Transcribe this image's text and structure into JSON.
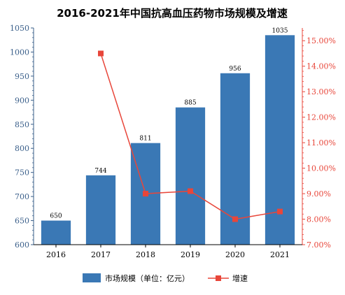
{
  "chart_data": {
    "type": "bar",
    "title": "2016-2021年中国抗高血压药物市场规模及增速",
    "categories": [
      "2016",
      "2017",
      "2018",
      "2019",
      "2020",
      "2021"
    ],
    "series": [
      {
        "name": "市场规模（单位：亿元）",
        "type": "bar",
        "axis": "left",
        "color": "#3a78b5",
        "values": [
          650,
          744,
          811,
          885,
          956,
          1035
        ]
      },
      {
        "name": "增速",
        "type": "line",
        "axis": "right",
        "color": "#e8463a",
        "values": [
          null,
          14.5,
          9.0,
          9.1,
          8.0,
          8.3
        ],
        "unit": "%"
      }
    ],
    "data_labels": [
      "650",
      "744",
      "811",
      "885",
      "956",
      "1035"
    ],
    "y_left": {
      "lim": [
        600,
        1050
      ],
      "ticks": [
        "600",
        "650",
        "700",
        "750",
        "800",
        "850",
        "900",
        "950",
        "1000",
        "1050"
      ],
      "color": "#3a5f8a"
    },
    "y_right": {
      "lim": [
        7.0,
        15.5
      ],
      "ticks": [
        "7.00%",
        "8.00%",
        "9.00%",
        "10.00%",
        "11.00%",
        "12.00%",
        "13.00%",
        "14.00%",
        "15.00%"
      ],
      "color": "#e8463a"
    },
    "grid": false,
    "legend_position": "bottom"
  }
}
